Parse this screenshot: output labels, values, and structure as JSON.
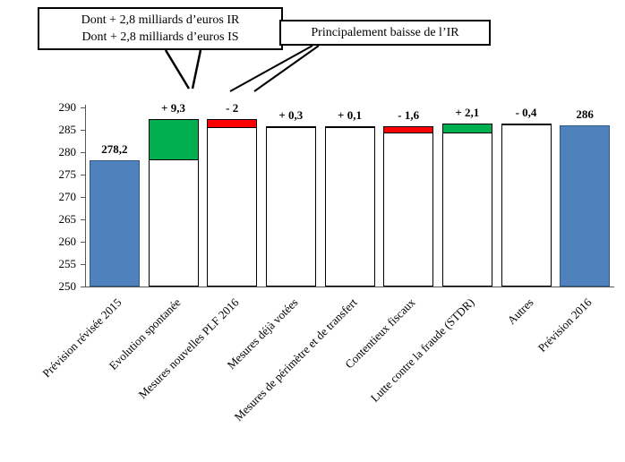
{
  "annotations": {
    "callout1_line1": "Dont + 2,8 milliards  d’euros  IR",
    "callout1_line2": "Dont + 2,8 milliards  d’euros  IS",
    "callout2": "Principalement baisse  de l’IR"
  },
  "chart_data": {
    "type": "bar",
    "subtype": "waterfall",
    "title": "",
    "categories": [
      "Prévision révisée 2015",
      "Evolution spontanée",
      "Mesures nouvelles PLF 2016",
      "Mesures déjà votées",
      "Mesures de périmètre et de transfert",
      "Contentieux fiscaux",
      "Lutte contre la fraude (STDR)",
      "Autres",
      "Prévision 2016"
    ],
    "bar_types": [
      "total",
      "delta",
      "delta",
      "delta",
      "delta",
      "delta",
      "delta",
      "delta",
      "total"
    ],
    "values": [
      278.2,
      9.3,
      -2,
      0.3,
      0.1,
      -1.6,
      2.1,
      -0.4,
      286
    ],
    "data_labels": [
      "278,2",
      "+ 9,3",
      "- 2",
      "+ 0,3",
      "+ 0,1",
      "- 1,6",
      "+ 2,1",
      "- 0,4",
      "286"
    ],
    "ylim": [
      250,
      290
    ],
    "yticks": [
      250,
      255,
      260,
      265,
      270,
      275,
      280,
      285,
      290
    ],
    "grid": false,
    "legend": "none",
    "colors": {
      "total": "#4F81BD",
      "increase": "#00B050",
      "decrease": "#FF0000"
    }
  }
}
